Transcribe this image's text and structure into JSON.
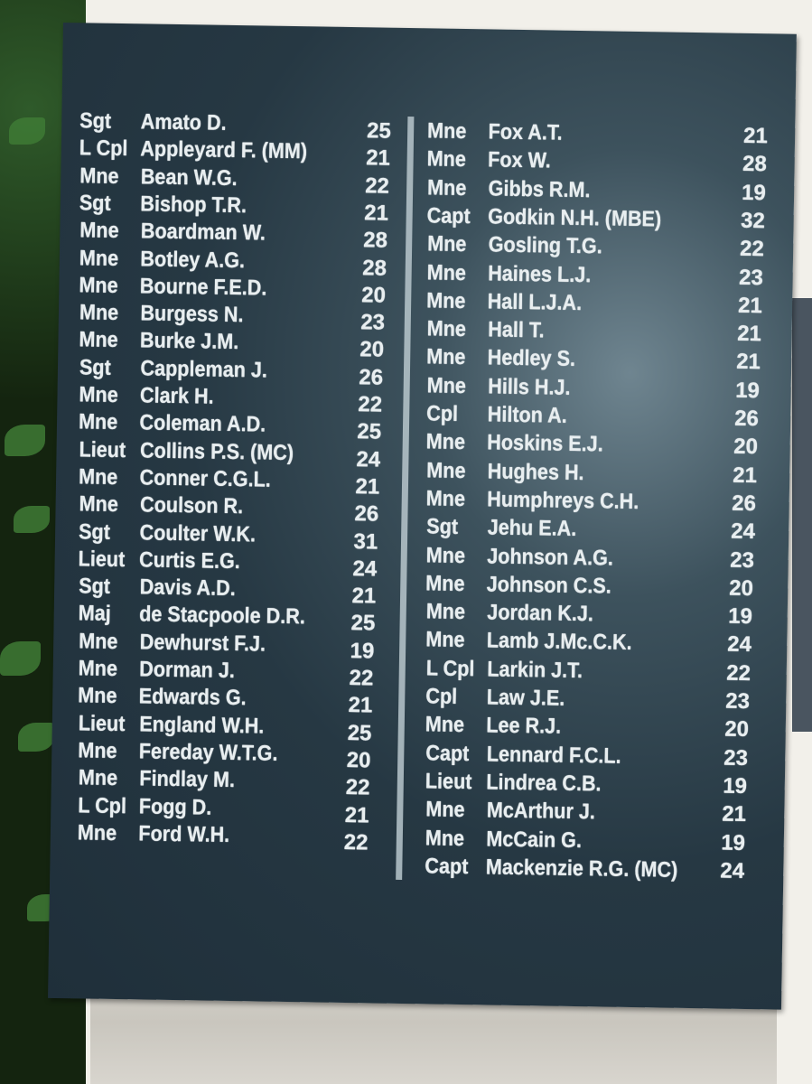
{
  "plaque": {
    "left_column": [
      {
        "rank": "Sgt",
        "name": "Amato D.",
        "age": "25"
      },
      {
        "rank": "L Cpl",
        "name": "Appleyard F. (MM)",
        "age": "21"
      },
      {
        "rank": "Mne",
        "name": "Bean W.G.",
        "age": "22"
      },
      {
        "rank": "Sgt",
        "name": "Bishop T.R.",
        "age": "21"
      },
      {
        "rank": "Mne",
        "name": "Boardman W.",
        "age": "28"
      },
      {
        "rank": "Mne",
        "name": "Botley A.G.",
        "age": "28"
      },
      {
        "rank": "Mne",
        "name": "Bourne F.E.D.",
        "age": "20"
      },
      {
        "rank": "Mne",
        "name": "Burgess N.",
        "age": "23"
      },
      {
        "rank": "Mne",
        "name": "Burke J.M.",
        "age": "20"
      },
      {
        "rank": "Sgt",
        "name": "Cappleman J.",
        "age": "26"
      },
      {
        "rank": "Mne",
        "name": "Clark H.",
        "age": "22"
      },
      {
        "rank": "Mne",
        "name": "Coleman A.D.",
        "age": "25"
      },
      {
        "rank": "Lieut",
        "name": "Collins P.S. (MC)",
        "age": "24"
      },
      {
        "rank": "Mne",
        "name": "Conner C.G.L.",
        "age": "21"
      },
      {
        "rank": "Mne",
        "name": "Coulson R.",
        "age": "26"
      },
      {
        "rank": "Sgt",
        "name": "Coulter W.K.",
        "age": "31"
      },
      {
        "rank": "Lieut",
        "name": "Curtis E.G.",
        "age": "24"
      },
      {
        "rank": "Sgt",
        "name": "Davis A.D.",
        "age": "21"
      },
      {
        "rank": "Maj",
        "name": "de Stacpoole D.R.",
        "age": "25"
      },
      {
        "rank": "Mne",
        "name": "Dewhurst F.J.",
        "age": "19"
      },
      {
        "rank": "Mne",
        "name": "Dorman J.",
        "age": "22"
      },
      {
        "rank": "Mne",
        "name": "Edwards G.",
        "age": "21"
      },
      {
        "rank": "Lieut",
        "name": "England W.H.",
        "age": "25"
      },
      {
        "rank": "Mne",
        "name": "Fereday W.T.G.",
        "age": "20"
      },
      {
        "rank": "Mne",
        "name": "Findlay M.",
        "age": "22"
      },
      {
        "rank": "L Cpl",
        "name": "Fogg D.",
        "age": "21"
      },
      {
        "rank": "Mne",
        "name": "Ford W.H.",
        "age": "22"
      }
    ],
    "right_column": [
      {
        "rank": "Mne",
        "name": "Fox A.T.",
        "age": "21"
      },
      {
        "rank": "Mne",
        "name": "Fox W.",
        "age": "28"
      },
      {
        "rank": "Mne",
        "name": "Gibbs R.M.",
        "age": "19"
      },
      {
        "rank": "Capt",
        "name": "Godkin N.H. (MBE)",
        "age": "32"
      },
      {
        "rank": "Mne",
        "name": "Gosling T.G.",
        "age": "22"
      },
      {
        "rank": "Mne",
        "name": "Haines L.J.",
        "age": "23"
      },
      {
        "rank": "Mne",
        "name": "Hall L.J.A.",
        "age": "21"
      },
      {
        "rank": "Mne",
        "name": "Hall T.",
        "age": "21"
      },
      {
        "rank": "Mne",
        "name": "Hedley S.",
        "age": "21"
      },
      {
        "rank": "Mne",
        "name": "Hills H.J.",
        "age": "19"
      },
      {
        "rank": "Cpl",
        "name": "Hilton A.",
        "age": "26"
      },
      {
        "rank": "Mne",
        "name": "Hoskins E.J.",
        "age": "20"
      },
      {
        "rank": "Mne",
        "name": "Hughes H.",
        "age": "21"
      },
      {
        "rank": "Mne",
        "name": "Humphreys C.H.",
        "age": "26"
      },
      {
        "rank": "Sgt",
        "name": "Jehu E.A.",
        "age": "24"
      },
      {
        "rank": "Mne",
        "name": "Johnson A.G.",
        "age": "23"
      },
      {
        "rank": "Mne",
        "name": "Johnson C.S.",
        "age": "20"
      },
      {
        "rank": "Mne",
        "name": "Jordan K.J.",
        "age": "19"
      },
      {
        "rank": "Mne",
        "name": "Lamb J.Mc.C.K.",
        "age": "24"
      },
      {
        "rank": "L Cpl",
        "name": "Larkin J.T.",
        "age": "22"
      },
      {
        "rank": "Cpl",
        "name": "Law J.E.",
        "age": "23"
      },
      {
        "rank": "Mne",
        "name": "Lee R.J.",
        "age": "20"
      },
      {
        "rank": "Capt",
        "name": "Lennard F.C.L.",
        "age": "23"
      },
      {
        "rank": "Lieut",
        "name": "Lindrea C.B.",
        "age": "19"
      },
      {
        "rank": "Mne",
        "name": "McArthur J.",
        "age": "21"
      },
      {
        "rank": "Mne",
        "name": "McCain G.",
        "age": "19"
      },
      {
        "rank": "Capt",
        "name": "Mackenzie R.G. (MC)",
        "age": "24"
      }
    ],
    "colors": {
      "slate": "#263843",
      "lettering": "#e8eef0",
      "stone": "#d6d3cc",
      "foliage": "#1f3a1a"
    }
  }
}
